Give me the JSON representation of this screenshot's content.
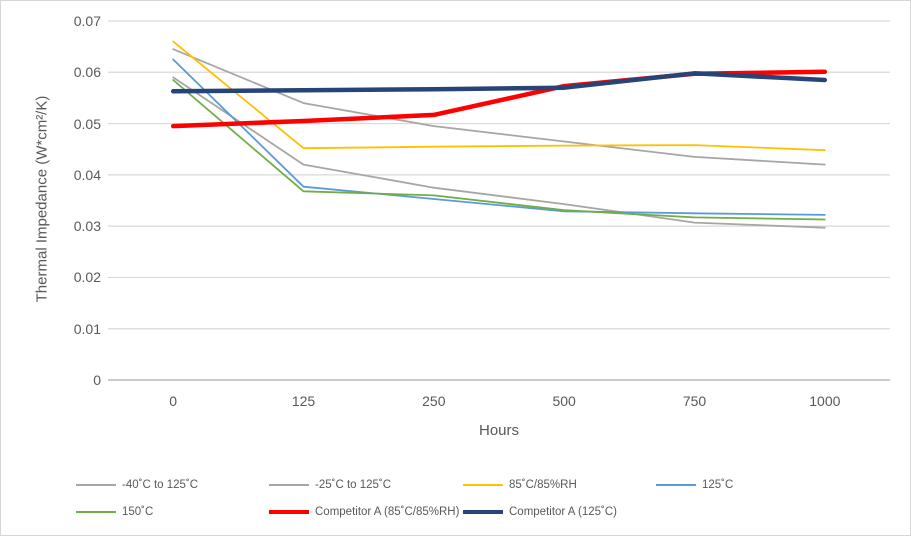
{
  "chart_data": {
    "type": "line",
    "title": "",
    "xlabel": "Hours",
    "ylabel": "Thermal Impedance (W*cm²/K)",
    "x_categories": [
      "0",
      "125",
      "250",
      "500",
      "750",
      "1000"
    ],
    "y_tick_labels": [
      "0.07",
      "0.06",
      "0.05",
      "0.04",
      "0.03",
      "0.02",
      "0.01",
      "0"
    ],
    "y_tick_values": [
      0.07,
      0.06,
      0.05,
      0.04,
      0.03,
      0.02,
      0.01,
      0
    ],
    "ylim": [
      0,
      0.07
    ],
    "grid": true,
    "legend_position": "bottom",
    "colors": {
      "gridline": "#d9d9d9",
      "axis_line": "#c9c9c9",
      "tick_text": "#595959"
    },
    "series": [
      {
        "name": "-40˚C to 125˚C",
        "color": "#a6a6a6",
        "thick": false,
        "values": [
          0.0645,
          0.054,
          0.0495,
          0.0465,
          0.0435,
          0.042
        ]
      },
      {
        "name": "-25˚C to 125˚C",
        "color": "#a6a6a6",
        "thick": false,
        "values": [
          0.059,
          0.042,
          0.0375,
          0.0343,
          0.0307,
          0.0297
        ]
      },
      {
        "name": "85˚C/85%RH",
        "color": "#ffc000",
        "thick": false,
        "values": [
          0.066,
          0.0452,
          0.0455,
          0.0457,
          0.0458,
          0.0448
        ]
      },
      {
        "name": "125˚C",
        "color": "#5b9bd5",
        "thick": false,
        "values": [
          0.0625,
          0.0377,
          0.0353,
          0.0329,
          0.0325,
          0.0322
        ]
      },
      {
        "name": "150˚C",
        "color": "#70ad47",
        "thick": false,
        "values": [
          0.0585,
          0.0368,
          0.036,
          0.0331,
          0.0317,
          0.0313
        ]
      },
      {
        "name": "Competitor A (85˚C/85%RH)",
        "color": "#ff0000",
        "thick": true,
        "values": [
          0.0495,
          0.0505,
          0.0517,
          0.0573,
          0.0597,
          0.0601
        ]
      },
      {
        "name": "Competitor A (125˚C)",
        "color": "#264478",
        "thick": true,
        "values": [
          0.0563,
          0.0565,
          0.0567,
          0.057,
          0.0598,
          0.0585
        ]
      }
    ]
  }
}
